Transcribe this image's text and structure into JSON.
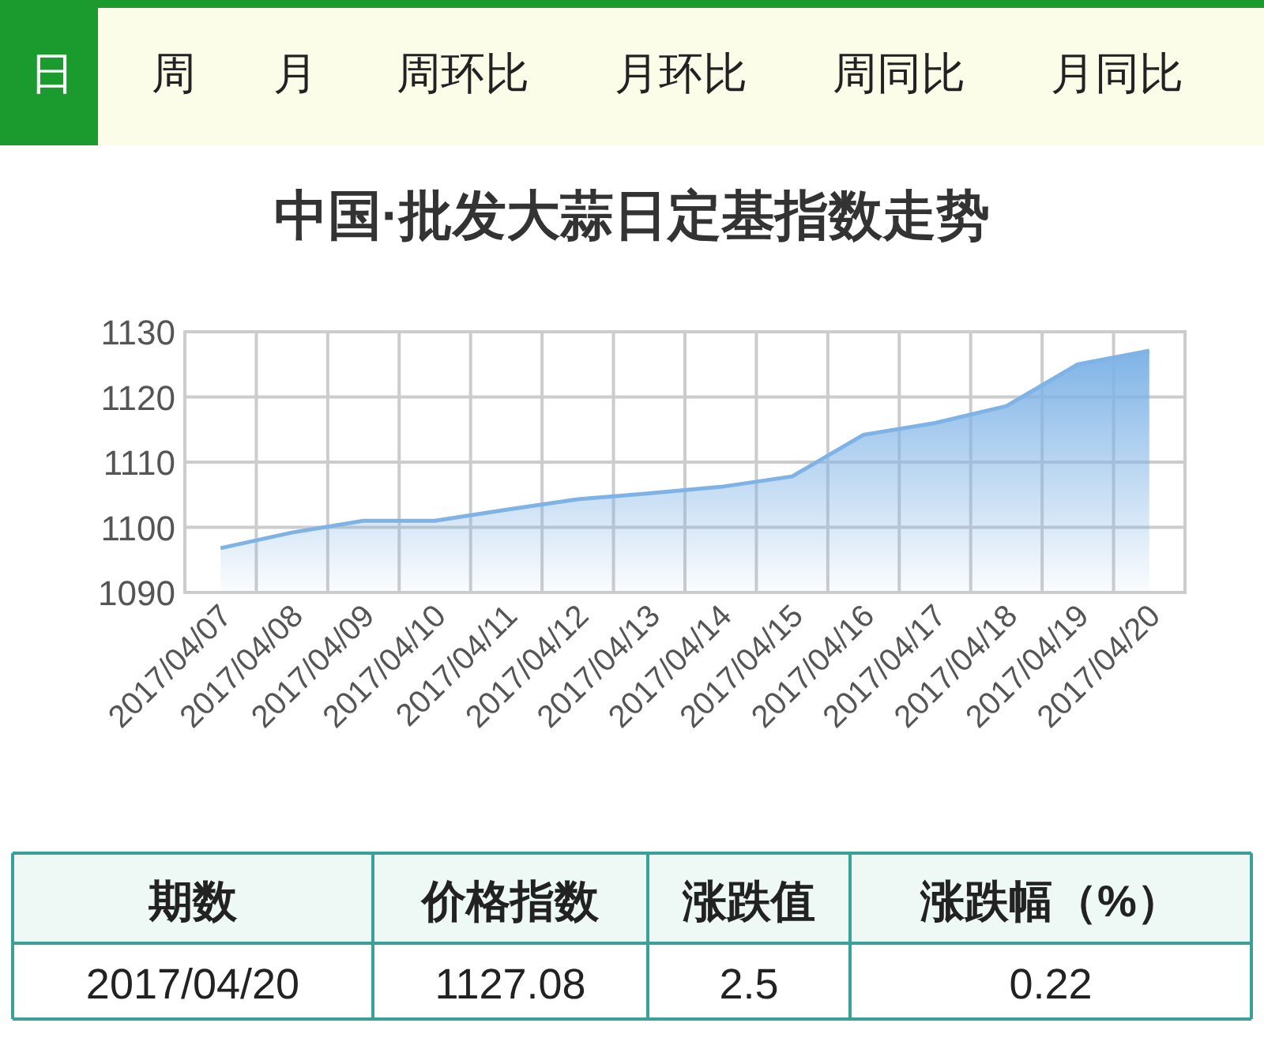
{
  "chart_data": {
    "type": "area",
    "title": "中国·批发大蒜日定基指数走势",
    "categories": [
      "2017/04/07",
      "2017/04/08",
      "2017/04/09",
      "2017/04/10",
      "2017/04/11",
      "2017/04/12",
      "2017/04/13",
      "2017/04/14",
      "2017/04/15",
      "2017/04/16",
      "2017/04/17",
      "2017/04/18",
      "2017/04/19",
      "2017/04/20"
    ],
    "series": [
      {
        "color": "#7fb3e6",
        "values": [
          1096.8,
          1099.2,
          1101,
          1101,
          1102.7,
          1104.3,
          1105.2,
          1106.2,
          1107.8,
          1114.2,
          1116,
          1118.6,
          1125,
          1127.1
        ]
      }
    ],
    "ylim": [
      1090,
      1130
    ],
    "yticks": [
      1090,
      1100,
      1110,
      1120,
      1130
    ],
    "grid": true,
    "annotations": [
      "日",
      "周",
      "月",
      "周环比",
      "月环比",
      "周同比",
      "月同比",
      "期数",
      "价格指数",
      "涨跌值",
      "涨跌幅（%）",
      "2017/04/20",
      "1127.08",
      "2.5",
      "0.22"
    ]
  }
}
